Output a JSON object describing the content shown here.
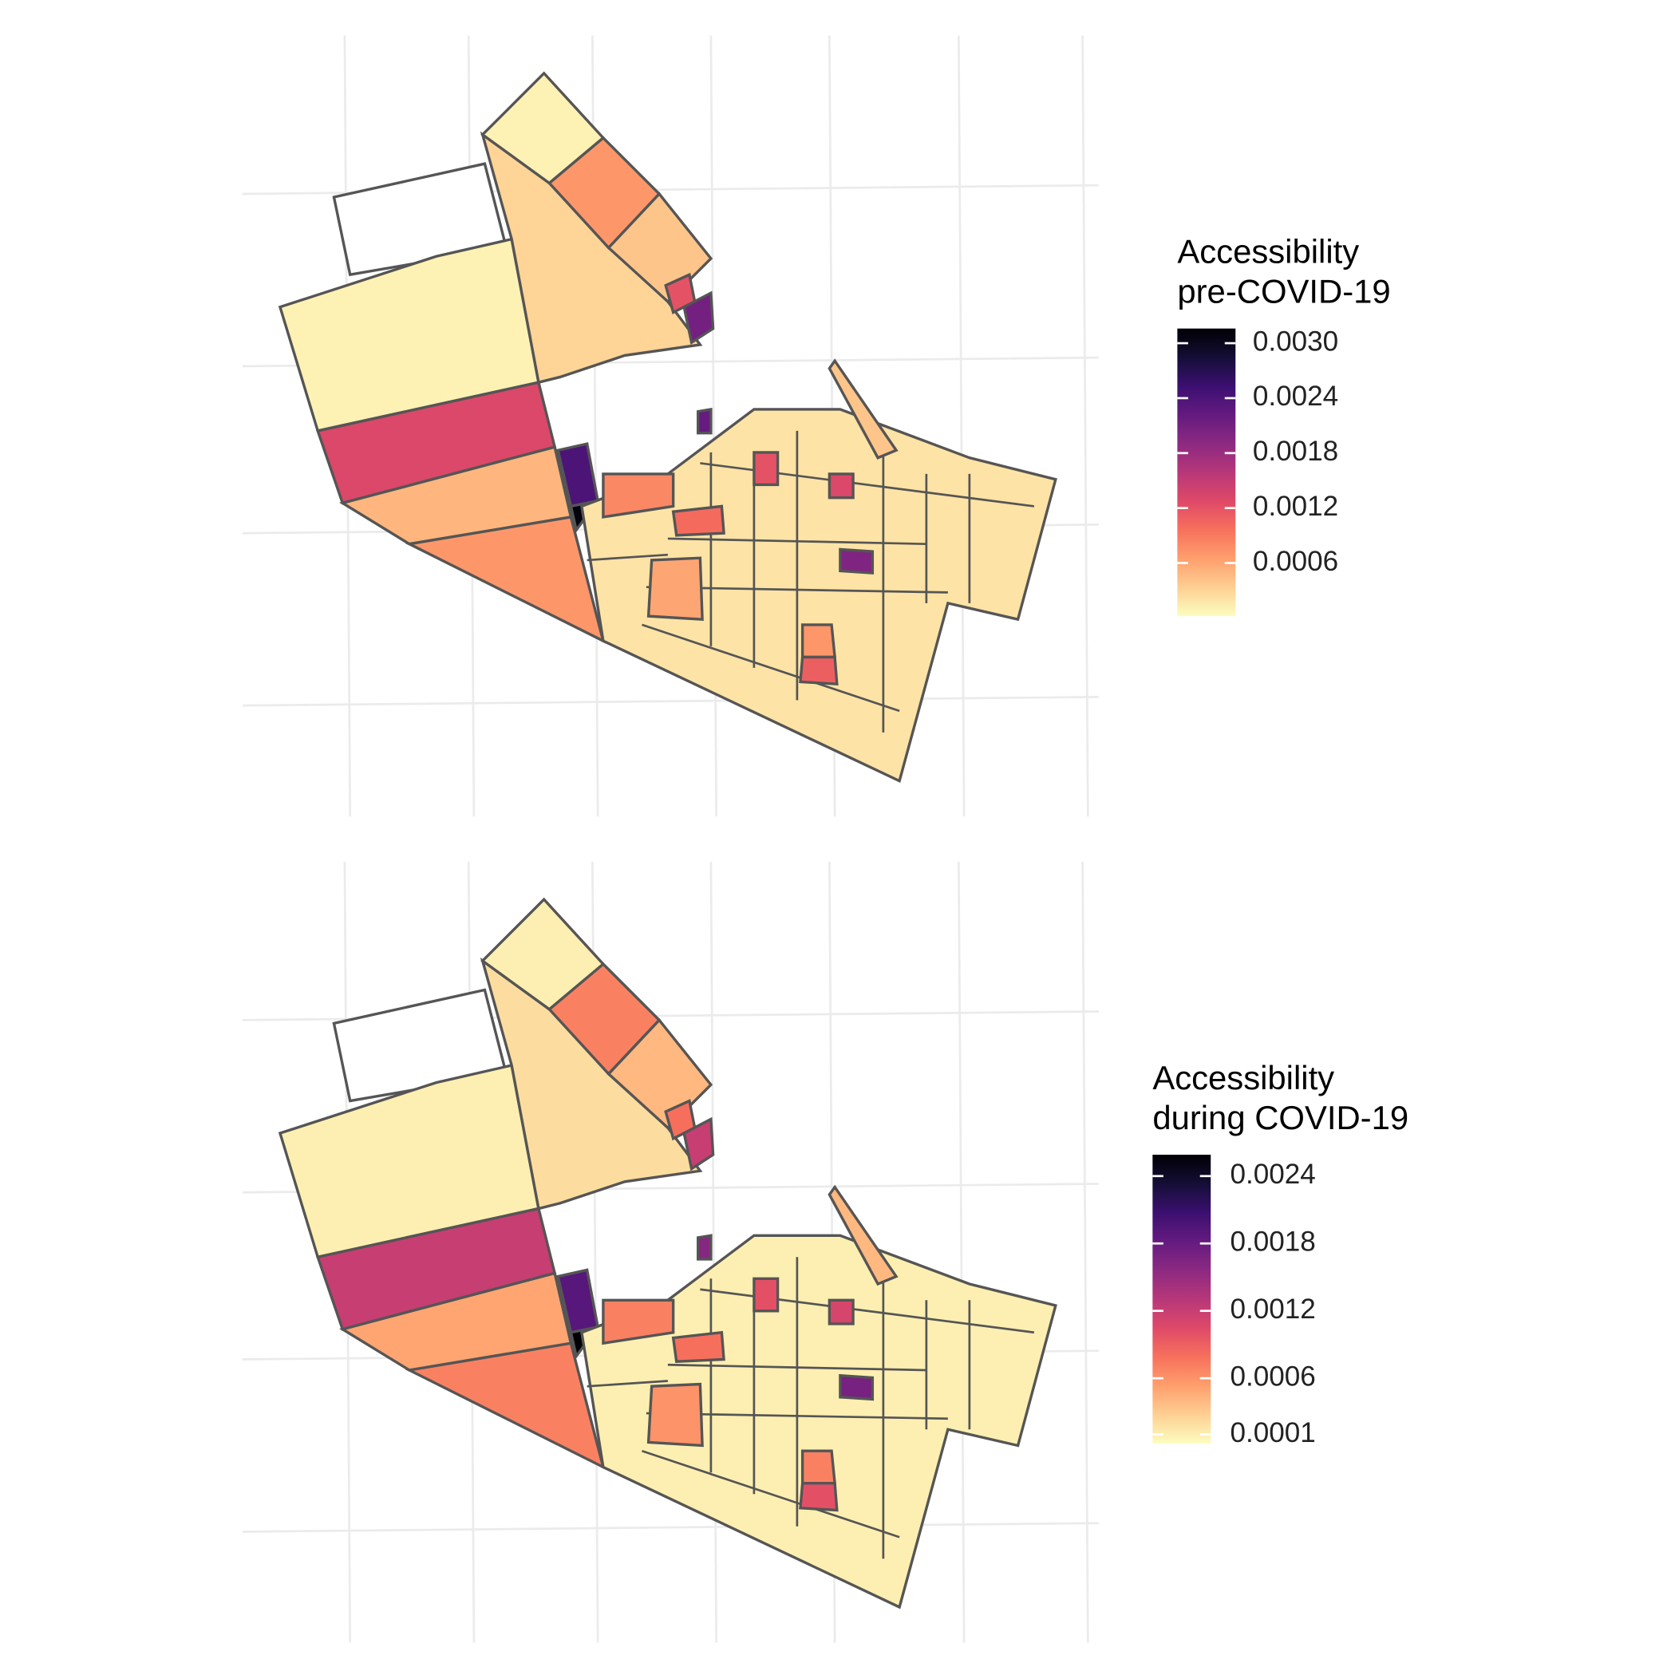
{
  "maps": [
    {
      "legend": {
        "title": [
          "Accessibility",
          "pre-COVID-19"
        ],
        "lim": [
          2e-05,
          0.00316
        ],
        "ticks": [
          {
            "value": 0.0006,
            "label": "0.0006"
          },
          {
            "value": 0.0012,
            "label": "0.0012"
          },
          {
            "value": 0.0018,
            "label": "0.0018"
          },
          {
            "value": 0.0024,
            "label": "0.0024"
          },
          {
            "value": 0.003,
            "label": "0.0030"
          }
        ]
      },
      "colormap": "magma",
      "regions": [
        {
          "value": 0.0001
        },
        {
          "value": 0.0013
        },
        {
          "value": 0.0005
        },
        {
          "value": 0.0007
        },
        {
          "value": 0.0003
        },
        {
          "value": 0.0001
        },
        {
          "value": 0.0007
        },
        {
          "value": 0.0004
        },
        {
          "value": 0.0012
        },
        {
          "value": 0.0021
        },
        {
          "value": 0.0024
        },
        {
          "value": 0.0031
        },
        {
          "value": 0.0002
        },
        {
          "value": 0.0004
        },
        {
          "value": 0.001
        },
        {
          "value": 0.0006
        },
        {
          "value": 0.0007
        },
        {
          "value": 0.0011
        },
        {
          "value": 0.002
        },
        {
          "value": 0.0012
        },
        {
          "value": 0.0022
        },
        {
          "value": 0.0013
        },
        {
          "value": 0.0008
        }
      ]
    },
    {
      "legend": {
        "title": [
          "Accessibility",
          "during COVID-19"
        ],
        "lim": [
          2e-05,
          0.00259
        ],
        "ticks": [
          {
            "value": 0.0001,
            "label": "0.0001"
          },
          {
            "value": 0.0006,
            "label": "0.0006"
          },
          {
            "value": 0.0012,
            "label": "0.0012"
          },
          {
            "value": 0.0018,
            "label": "0.0018"
          },
          {
            "value": 0.0024,
            "label": "0.0024"
          }
        ]
      },
      "colormap": "magma",
      "regions": [
        {
          "value": 0.0001
        },
        {
          "value": 0.0012
        },
        {
          "value": 0.0005
        },
        {
          "value": 0.0007
        },
        {
          "value": 0.0002
        },
        {
          "value": 0.0001
        },
        {
          "value": 0.0007
        },
        {
          "value": 0.0004
        },
        {
          "value": 0.0008
        },
        {
          "value": 0.0012
        },
        {
          "value": 0.0019
        },
        {
          "value": 0.0026
        },
        {
          "value": 0.0001
        },
        {
          "value": 0.0004
        },
        {
          "value": 0.0008
        },
        {
          "value": 0.0006
        },
        {
          "value": 0.0007
        },
        {
          "value": 0.001
        },
        {
          "value": 0.0017
        },
        {
          "value": 0.001
        },
        {
          "value": 0.0016
        },
        {
          "value": 0.0011
        },
        {
          "value": 0.0007
        }
      ]
    }
  ]
}
